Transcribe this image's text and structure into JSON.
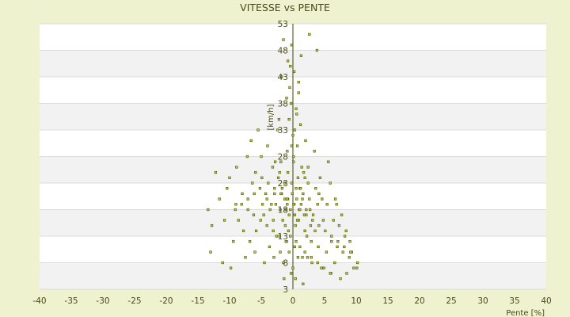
{
  "chart_data": {
    "type": "scatter",
    "title": "VITESSE vs PENTE",
    "xlabel": "Pente [%]",
    "ylabel": "[km/h]",
    "xlim": [
      -40,
      40
    ],
    "ylim": [
      3,
      53
    ],
    "x_ticks": [
      "-40",
      "-35",
      "-30",
      "-25",
      "-20",
      "-15",
      "-10",
      "-5",
      "0",
      "5",
      "10",
      "15",
      "20",
      "25",
      "30",
      "35",
      "40"
    ],
    "y_ticks_visible": [
      "3",
      "8",
      "13",
      "18",
      "23",
      "28",
      "33",
      "38",
      "43",
      "48",
      "53"
    ],
    "band_colors": [
      "#ffffff",
      "#f2f2f2"
    ],
    "grid": true,
    "colors": {
      "point_fill": "#c8d060",
      "point_stroke": "#556000",
      "axis": "#3a4a00",
      "page_bg": "#eef2cf"
    },
    "series": [
      {
        "points": [
          [
            0.2,
            19
          ],
          [
            1.1,
            22
          ],
          [
            -0.6,
            17
          ],
          [
            0.8,
            24
          ],
          [
            -1.3,
            20
          ],
          [
            2.1,
            18
          ],
          [
            0.4,
            15
          ],
          [
            -0.2,
            23
          ],
          [
            1.6,
            21
          ],
          [
            -2.0,
            18
          ],
          [
            0.9,
            16
          ],
          [
            -0.8,
            25
          ],
          [
            1.3,
            19
          ],
          [
            -1.7,
            22
          ],
          [
            2.6,
            20
          ],
          [
            0.1,
            27
          ],
          [
            -0.4,
            13
          ],
          [
            1.9,
            14
          ],
          [
            -2.9,
            21
          ],
          [
            3.2,
            17
          ],
          [
            0.6,
            20
          ],
          [
            -1.1,
            18
          ],
          [
            2.4,
            23
          ],
          [
            -3.4,
            19
          ],
          [
            0.3,
            11
          ],
          [
            1.4,
            26
          ],
          [
            -0.9,
            29
          ],
          [
            0.7,
            30
          ],
          [
            -1.6,
            16
          ],
          [
            2.8,
            15
          ],
          [
            -0.1,
            21
          ],
          [
            1.0,
            18
          ],
          [
            -2.3,
            24
          ],
          [
            3.6,
            22
          ],
          [
            0.5,
            12
          ],
          [
            -0.7,
            14
          ],
          [
            1.7,
            25
          ],
          [
            -1.9,
            27
          ],
          [
            2.2,
            13
          ],
          [
            -4.1,
            20
          ],
          [
            0.0,
            32
          ],
          [
            0.6,
            36
          ],
          [
            -0.3,
            38
          ],
          [
            -0.5,
            41
          ],
          [
            0.2,
            44
          ],
          [
            -0.8,
            46
          ],
          [
            -0.2,
            49
          ],
          [
            2.6,
            51
          ],
          [
            -1.8,
            43
          ],
          [
            3.8,
            48
          ],
          [
            -2.4,
            33
          ],
          [
            2.0,
            31
          ],
          [
            -3.2,
            26
          ],
          [
            4.3,
            24
          ],
          [
            -4.6,
            17
          ],
          [
            4.8,
            16
          ],
          [
            -5.2,
            22
          ],
          [
            5.4,
            19
          ],
          [
            -5.8,
            14
          ],
          [
            6.1,
            12
          ],
          [
            -6.4,
            23
          ],
          [
            6.7,
            20
          ],
          [
            -7.1,
            18
          ],
          [
            7.3,
            15
          ],
          [
            -8.0,
            21
          ],
          [
            8.2,
            13
          ],
          [
            -9.0,
            19
          ],
          [
            9.3,
            10
          ],
          [
            -10.0,
            24
          ],
          [
            10.1,
            7
          ],
          [
            -10.8,
            16
          ],
          [
            -12.2,
            25
          ],
          [
            -13.4,
            18
          ],
          [
            -13.0,
            10
          ],
          [
            -11.1,
            8
          ],
          [
            -9.8,
            7
          ],
          [
            -7.5,
            9
          ],
          [
            -6.0,
            10
          ],
          [
            -4.5,
            8
          ],
          [
            -3.0,
            9
          ],
          [
            -1.5,
            8
          ],
          [
            0.0,
            7
          ],
          [
            1.5,
            9
          ],
          [
            3.0,
            8
          ],
          [
            4.5,
            7
          ],
          [
            6.0,
            6
          ],
          [
            7.5,
            5
          ],
          [
            8.5,
            6
          ],
          [
            9.6,
            7
          ],
          [
            10.2,
            8
          ],
          [
            -4.0,
            30
          ],
          [
            -2.2,
            35
          ],
          [
            1.2,
            34
          ],
          [
            3.4,
            29
          ],
          [
            -3.7,
            11
          ],
          [
            -6.8,
            12
          ],
          [
            7.0,
            11
          ],
          [
            5.6,
            27
          ],
          [
            -5.0,
            28
          ],
          [
            0.9,
            40
          ],
          [
            -1.2,
            15
          ],
          [
            1.8,
            17
          ],
          [
            -2.6,
            13
          ],
          [
            2.9,
            12
          ],
          [
            -3.1,
            16
          ],
          [
            3.5,
            14
          ],
          [
            -4.8,
            19
          ],
          [
            4.1,
            21
          ],
          [
            -6.2,
            17
          ],
          [
            6.4,
            16
          ],
          [
            -0.6,
            10
          ],
          [
            0.8,
            9
          ],
          [
            -1.0,
            12
          ],
          [
            1.1,
            11
          ],
          [
            -2.0,
            10
          ],
          [
            2.3,
            9
          ],
          [
            -0.3,
            6
          ],
          [
            0.4,
            5
          ],
          [
            -1.4,
            5
          ],
          [
            1.6,
            4
          ],
          [
            -7.8,
            14
          ],
          [
            -8.6,
            16
          ],
          [
            -9.4,
            12
          ],
          [
            -11.6,
            20
          ],
          [
            -12.8,
            15
          ],
          [
            -10.4,
            22
          ],
          [
            -8.9,
            26
          ],
          [
            -7.2,
            28
          ],
          [
            -6.6,
            31
          ],
          [
            -5.5,
            33
          ],
          [
            5.9,
            23
          ],
          [
            6.9,
            19
          ],
          [
            7.7,
            17
          ],
          [
            8.4,
            14
          ],
          [
            9.0,
            12
          ],
          [
            8.9,
            9
          ],
          [
            7.9,
            10
          ],
          [
            6.6,
            8
          ],
          [
            5.3,
            10
          ],
          [
            4.0,
            11
          ],
          [
            -0.9,
            19
          ],
          [
            0.5,
            22
          ],
          [
            -1.8,
            21
          ],
          [
            1.5,
            20
          ],
          [
            -2.7,
            19
          ],
          [
            2.7,
            18
          ],
          [
            -3.6,
            18
          ],
          [
            3.9,
            19
          ],
          [
            -4.3,
            21
          ],
          [
            4.6,
            20
          ],
          [
            0.3,
            17
          ],
          [
            -0.4,
            18
          ],
          [
            0.7,
            16
          ],
          [
            -0.8,
            20
          ],
          [
            1.2,
            22
          ],
          [
            -1.3,
            23
          ],
          [
            1.9,
            24
          ],
          [
            -2.1,
            25
          ],
          [
            2.4,
            26
          ],
          [
            -2.8,
            27
          ],
          [
            0.1,
            28
          ],
          [
            -0.2,
            30
          ],
          [
            0.3,
            33
          ],
          [
            -0.6,
            35
          ],
          [
            0.5,
            37
          ],
          [
            -1.0,
            39
          ],
          [
            0.9,
            42
          ],
          [
            -0.4,
            45
          ],
          [
            1.3,
            47
          ],
          [
            -1.5,
            50
          ],
          [
            -5.9,
            25
          ],
          [
            -4.9,
            24
          ],
          [
            -3.9,
            23
          ],
          [
            -2.9,
            22
          ],
          [
            -1.9,
            21
          ],
          [
            -0.9,
            20
          ],
          [
            0.1,
            19
          ],
          [
            1.1,
            18
          ],
          [
            2.1,
            17
          ],
          [
            3.1,
            16
          ],
          [
            4.1,
            15
          ],
          [
            5.1,
            14
          ],
          [
            6.1,
            13
          ],
          [
            7.1,
            12
          ],
          [
            8.1,
            11
          ],
          [
            9.1,
            10
          ],
          [
            -9.1,
            18
          ],
          [
            -8.1,
            19
          ],
          [
            -7.1,
            20
          ],
          [
            -6.1,
            21
          ],
          [
            -5.1,
            16
          ],
          [
            -4.1,
            15
          ],
          [
            -3.1,
            14
          ],
          [
            -2.1,
            13
          ],
          [
            -1.1,
            12
          ],
          [
            1.9,
            10
          ],
          [
            2.9,
            9
          ],
          [
            3.9,
            8
          ],
          [
            4.9,
            7
          ],
          [
            5.9,
            6
          ]
        ]
      }
    ]
  }
}
